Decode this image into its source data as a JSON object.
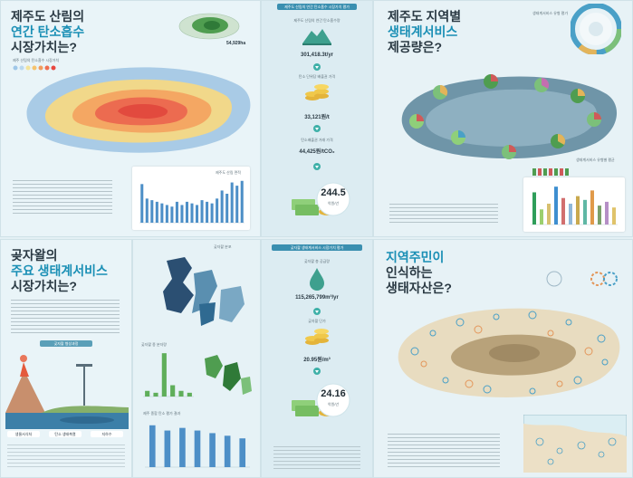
{
  "panel_tl": {
    "title_line1": "제주도 산림의",
    "title_line2": "연간 탄소흡수",
    "title_line3": "시장가치는?",
    "inset_value": "54,929ha",
    "legend_label": "제주 산림의 탄소흡수 시장가치",
    "chart_label": "제주도 산림 면적"
  },
  "panel_tc": {
    "header": "제주도 산림의 연간 탄소흡수 시장가치 평가",
    "label1": "제주도 산림의 연간 탄소흡수량",
    "value1": "301,418.3t/yr",
    "label2": "탄소 단위당 배출권 가격",
    "value2": "33,121원/t",
    "label3": "탄소배출권 거래 가격",
    "value3": "44,425원/tCO₂",
    "total_value": "244.5",
    "total_unit": "억원/년"
  },
  "panel_tr": {
    "title_line1": "제주도 지역별",
    "title_line2": "생태계서비스",
    "title_line3": "제공량은?",
    "legend_label": "생태계서비스 유형 평가",
    "chart_label": "생태계서비스 유형별 평균"
  },
  "panel_bl": {
    "title_line1": "곶자왈의",
    "title_line2": "주요 생태계서비스",
    "title_line3": "시장가치는?",
    "section_label": "곶자왈 형성과정",
    "tag1": "생물서식처",
    "tag2": "탄소 생태축열",
    "tag3": "지하수"
  },
  "panel_bc": {
    "map_label": "곶자왈 분포",
    "chart1_label": "곶자왈 종 분자량",
    "chart2_label": "제주 종합 탄소 평가 결과",
    "header": "곶자왈 생태계서비스 시장가치 평가",
    "label1": "곶자왈 총 공급량",
    "value1": "115,265,799m³/yr",
    "label2": "곶자왈 단가",
    "value2": "20.95원/m³",
    "total_value": "24.16",
    "total_unit": "억원/년"
  },
  "panel_br": {
    "title_line1": "지역주민이",
    "title_line2": "인식하는",
    "title_line3": "생태자산은?"
  },
  "chart_bars_tl": [
    48,
    30,
    28,
    26,
    24,
    22,
    20,
    26,
    22,
    26,
    24,
    22,
    28,
    26,
    24,
    30,
    40,
    36,
    50,
    46,
    52
  ],
  "chart_bars_tr": [
    {
      "color": "#2f9e5a",
      "v": 34
    },
    {
      "color": "#9ccf6e",
      "v": 16
    },
    {
      "color": "#d8c070",
      "v": 22
    },
    {
      "color": "#3e8fd0",
      "v": 40
    },
    {
      "color": "#d26f6f",
      "v": 28
    },
    {
      "color": "#8fb8d9",
      "v": 22
    },
    {
      "color": "#c9a94f",
      "v": 30
    },
    {
      "color": "#5fb7a5",
      "v": 26
    },
    {
      "color": "#e09a4a",
      "v": 36
    },
    {
      "color": "#7aa06a",
      "v": 20
    },
    {
      "color": "#b58fc6",
      "v": 24
    },
    {
      "color": "#e0c36a",
      "v": 18
    }
  ],
  "chart_bars_bc1": [
    6,
    4,
    46,
    12,
    6,
    4
  ],
  "chart_bars_bc2": [
    32,
    28,
    30,
    28,
    26,
    24,
    22
  ]
}
